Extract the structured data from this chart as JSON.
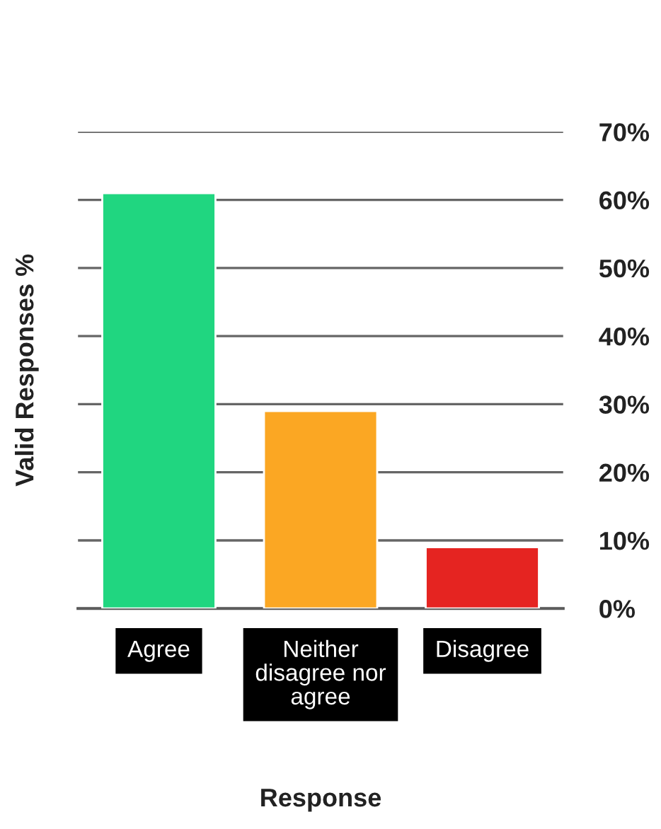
{
  "chart_data": {
    "type": "bar",
    "xlabel": "Response",
    "ylabel": "Valid Responses %",
    "categories": [
      "Agree",
      "Neither\ndisagree nor\nagree",
      "Disagree"
    ],
    "values": [
      61,
      29,
      9
    ],
    "colors": [
      "#20d680",
      "#fba723",
      "#e52421"
    ],
    "ylim": [
      0,
      70
    ],
    "yticks": [
      {
        "value": 0,
        "label": "0%"
      },
      {
        "value": 10,
        "label": "10%"
      },
      {
        "value": 20,
        "label": "20%"
      },
      {
        "value": 30,
        "label": "30%"
      },
      {
        "value": 40,
        "label": "40%"
      },
      {
        "value": 50,
        "label": "50%"
      },
      {
        "value": 60,
        "label": "60%"
      },
      {
        "value": 70,
        "label": "70%"
      }
    ],
    "grid": "y",
    "legend": false
  }
}
